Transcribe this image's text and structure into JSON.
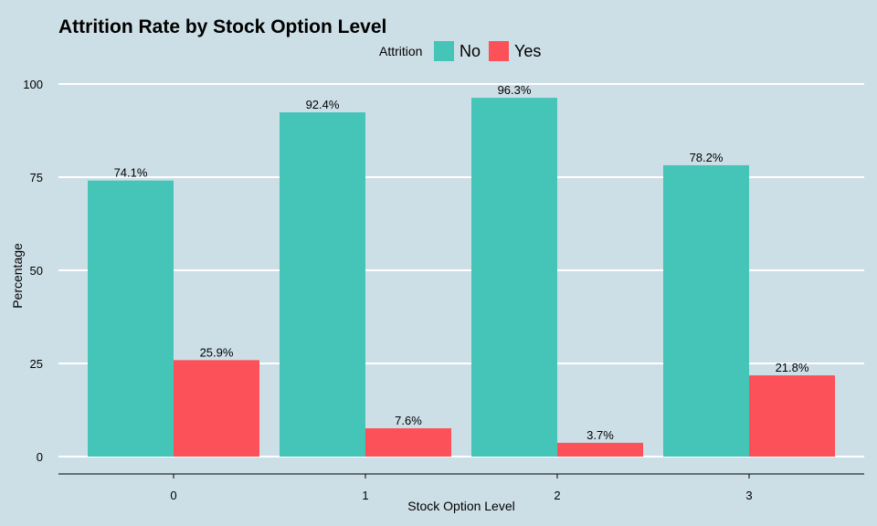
{
  "chart_data": {
    "type": "bar",
    "title": "Attrition Rate by Stock Option Level",
    "xlabel": "Stock Option Level",
    "ylabel": "Percentage",
    "categories": [
      "0",
      "1",
      "2",
      "3"
    ],
    "series": [
      {
        "name": "No",
        "color": "#45c4b8",
        "values": [
          74.1,
          92.4,
          96.3,
          78.2
        ],
        "labels": [
          "74.1%",
          "92.4%",
          "96.3%",
          "78.2%"
        ]
      },
      {
        "name": "Yes",
        "color": "#fc5159",
        "values": [
          25.9,
          7.6,
          3.7,
          21.8
        ],
        "labels": [
          "25.9%",
          "7.6%",
          "3.7%",
          "21.8%"
        ]
      }
    ],
    "legend_title": "Attrition",
    "legend_position": "top",
    "ylim": [
      0,
      100
    ],
    "yticks": [
      0,
      25,
      50,
      75,
      100
    ],
    "grid": true,
    "colors": {
      "background": "#cddfe6",
      "grid": "#ffffff"
    }
  }
}
